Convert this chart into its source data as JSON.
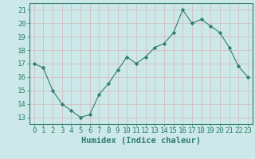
{
  "x": [
    0,
    1,
    2,
    3,
    4,
    5,
    6,
    7,
    8,
    9,
    10,
    11,
    12,
    13,
    14,
    15,
    16,
    17,
    18,
    19,
    20,
    21,
    22,
    23
  ],
  "y": [
    17.0,
    16.7,
    15.0,
    14.0,
    13.5,
    13.0,
    13.2,
    14.7,
    15.5,
    16.5,
    17.5,
    17.0,
    17.5,
    18.2,
    18.5,
    19.3,
    21.0,
    20.0,
    20.3,
    19.8,
    19.3,
    18.2,
    16.8,
    16.0
  ],
  "xlabel": "Humidex (Indice chaleur)",
  "ylim": [
    12.5,
    21.5
  ],
  "xlim": [
    -0.5,
    23.5
  ],
  "yticks": [
    13,
    14,
    15,
    16,
    17,
    18,
    19,
    20,
    21
  ],
  "xticks": [
    0,
    1,
    2,
    3,
    4,
    5,
    6,
    7,
    8,
    9,
    10,
    11,
    12,
    13,
    14,
    15,
    16,
    17,
    18,
    19,
    20,
    21,
    22,
    23
  ],
  "line_color": "#2e7d6e",
  "marker_color": "#2e7d6e",
  "bg_color": "#cce8e8",
  "grid_color": "#b8d8d8",
  "axis_color": "#2e7d6e",
  "tick_label_color": "#2e7d6e",
  "xlabel_color": "#2e7d6e",
  "xlabel_fontsize": 7.5,
  "tick_fontsize": 6.5
}
